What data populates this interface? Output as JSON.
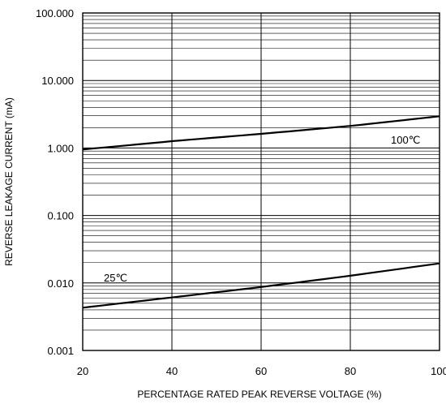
{
  "chart_data": {
    "type": "line",
    "title": "",
    "xlabel": "PERCENTAGE RATED PEAK REVERSE VOLTAGE (%)",
    "ylabel": "REVERSE LEAKAGE CURRENT (mA)",
    "xlim": [
      20,
      100
    ],
    "ylim": [
      0.001,
      100
    ],
    "y_scale": "log",
    "grid": true,
    "x_ticks": [
      20,
      40,
      60,
      80,
      100
    ],
    "x_tick_labels": [
      "20",
      "40",
      "60",
      "80",
      "100"
    ],
    "y_ticks": [
      0.001,
      0.01,
      0.1,
      1,
      10,
      100
    ],
    "y_tick_labels": [
      "0.001",
      "0.010",
      "0.100",
      "1.000",
      "10.000",
      "100.000"
    ],
    "series": [
      {
        "name": "100℃",
        "x": [
          20,
          40,
          60,
          80,
          100
        ],
        "y": [
          0.95,
          1.26,
          1.62,
          2.12,
          2.95
        ]
      },
      {
        "name": "25℃",
        "x": [
          20,
          40,
          60,
          80,
          100
        ],
        "y": [
          0.0043,
          0.0061,
          0.0087,
          0.0128,
          0.0195
        ]
      }
    ],
    "colors": {
      "line": "#000000",
      "grid": "#000000",
      "background": "#ffffff"
    }
  }
}
